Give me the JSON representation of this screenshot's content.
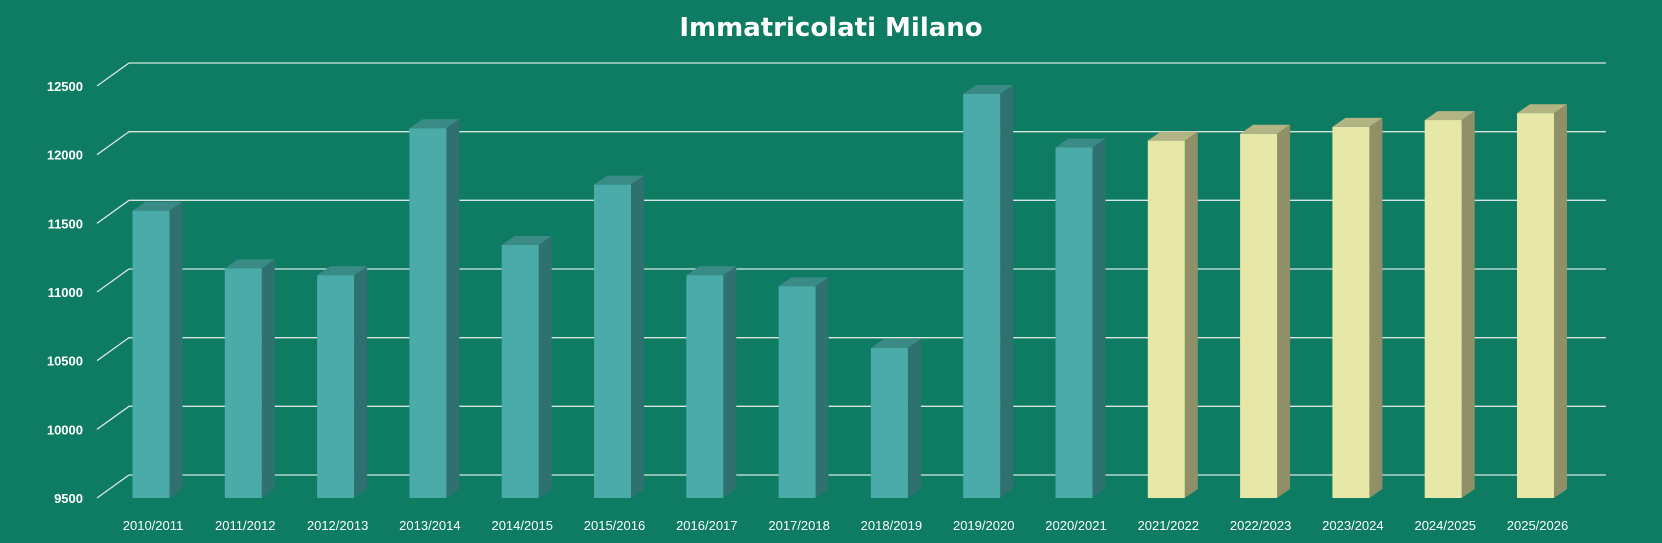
{
  "chart_data": {
    "type": "bar",
    "title": "Immatricolati Milano",
    "xlabel": "",
    "ylabel": "",
    "ylim": [
      9500,
      12500
    ],
    "yticks": [
      9500,
      10000,
      10500,
      11000,
      11500,
      12000,
      12500
    ],
    "grid": true,
    "categories": [
      "2010/2011",
      "2011/2012",
      "2012/2013",
      "2013/2014",
      "2014/2015",
      "2015/2016",
      "2016/2017",
      "2017/2018",
      "2018/2019",
      "2019/2020",
      "2020/2021",
      "2021/2022",
      "2022/2023",
      "2023/2024",
      "2024/2025",
      "2025/2026"
    ],
    "series": [
      {
        "values": [
          11490,
          11070,
          11020,
          12090,
          11240,
          11680,
          11020,
          10940,
          10490,
          12340,
          11950,
          12000,
          12050,
          12100,
          12150,
          12200
        ]
      }
    ],
    "colors": {
      "actual": "#4aaba8",
      "actual_side": "#2f7070",
      "actual_top": "#3a8b85",
      "forecast": "#e7e8a8",
      "forecast_side": "#8f9068",
      "forecast_top": "#b3b483"
    },
    "forecast_from_index": 11
  }
}
